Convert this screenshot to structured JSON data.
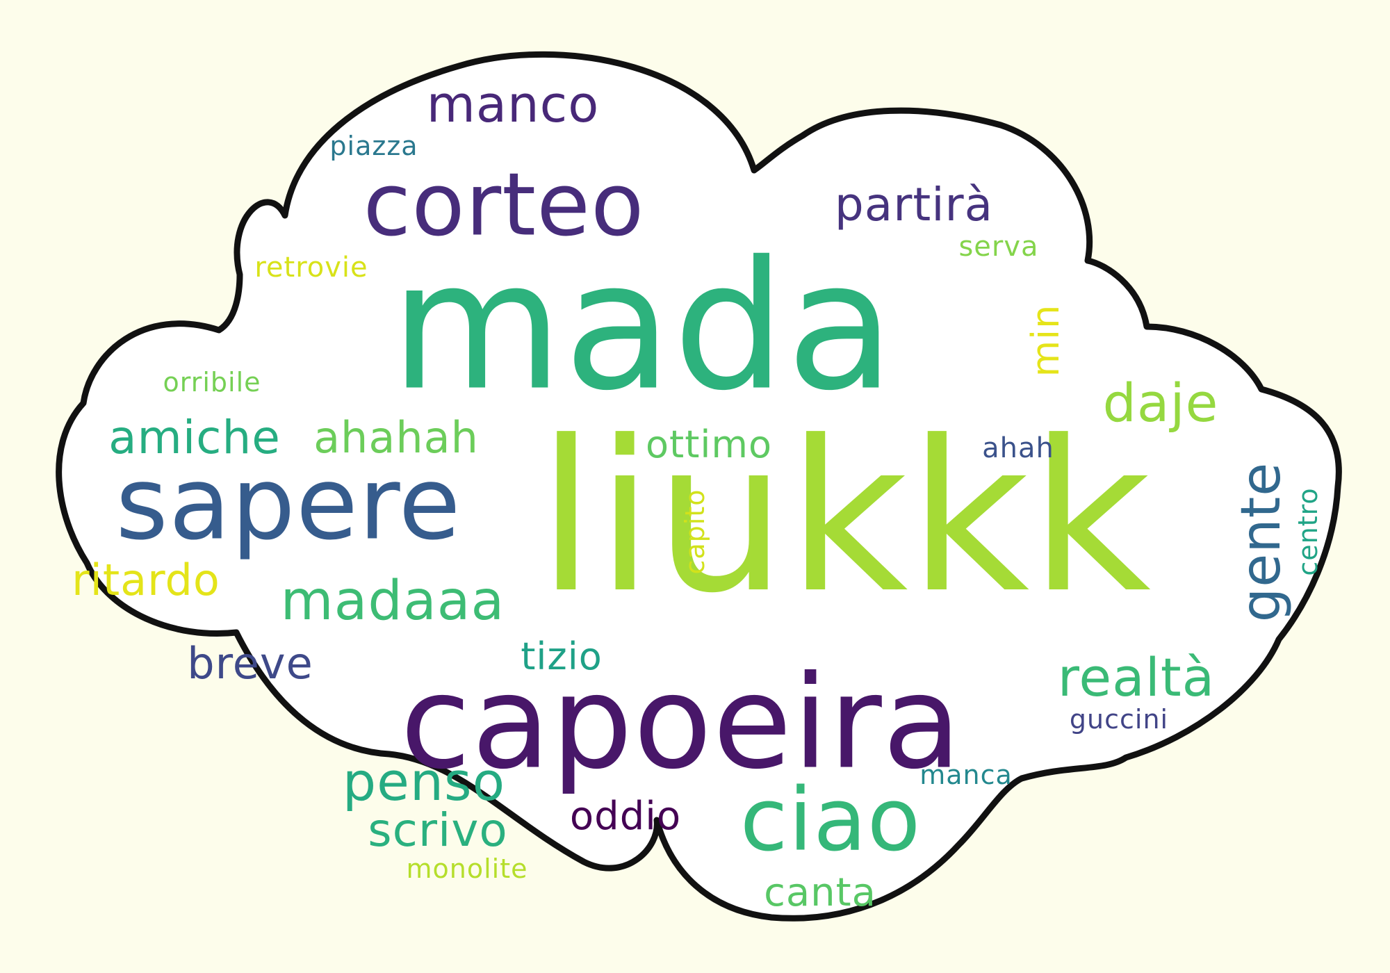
{
  "words": {
    "liukkk": {
      "text": "liukkk",
      "color": "#a5db36"
    },
    "mada": {
      "text": "mada",
      "color": "#2db27d"
    },
    "capoeira": {
      "text": "capoeira",
      "color": "#481769"
    },
    "sapere": {
      "text": "sapere",
      "color": "#365c8d"
    },
    "corteo": {
      "text": "corteo",
      "color": "#472d7b"
    },
    "ciao": {
      "text": "ciao",
      "color": "#35b779"
    },
    "madaaa": {
      "text": "madaaa",
      "color": "#3dbc74"
    },
    "amiche": {
      "text": "amiche",
      "color": "#26ad81"
    },
    "ahahah": {
      "text": "ahahah",
      "color": "#6ccd5a"
    },
    "gente": {
      "text": "gente",
      "color": "#31688e"
    },
    "realta": {
      "text": "realtà",
      "color": "#3aba76"
    },
    "daje": {
      "text": "daje",
      "color": "#95d840"
    },
    "penso": {
      "text": "penso",
      "color": "#25ab82"
    },
    "scrivo": {
      "text": "scrivo",
      "color": "#2ab07f"
    },
    "manco": {
      "text": "manco",
      "color": "#482878"
    },
    "partira": {
      "text": "partirà",
      "color": "#46337e"
    },
    "ritardo": {
      "text": "ritardo",
      "color": "#e4e419"
    },
    "breve": {
      "text": "breve",
      "color": "#3e4989"
    },
    "ottimo": {
      "text": "ottimo",
      "color": "#5ec962"
    },
    "tizio": {
      "text": "tizio",
      "color": "#1fa187"
    },
    "oddio": {
      "text": "oddio",
      "color": "#440154"
    },
    "canta": {
      "text": "canta",
      "color": "#58c765"
    },
    "min": {
      "text": "min",
      "color": "#e5e419"
    },
    "retrovie": {
      "text": "retrovie",
      "color": "#d8e219"
    },
    "serva": {
      "text": "serva",
      "color": "#84d44b"
    },
    "piazza": {
      "text": "piazza",
      "color": "#2a788e"
    },
    "orribile": {
      "text": "orribile",
      "color": "#75d054"
    },
    "ahah": {
      "text": "ahah",
      "color": "#3b528b"
    },
    "capito": {
      "text": "capito",
      "color": "#d2e21b"
    },
    "centro": {
      "text": "centro",
      "color": "#20a486"
    },
    "guccini": {
      "text": "guccini",
      "color": "#414487"
    },
    "manca": {
      "text": "manca",
      "color": "#23888e"
    },
    "monolite": {
      "text": "monolite",
      "color": "#b5de2b"
    }
  },
  "cloud": {
    "fill": "#ffffff",
    "stroke": "#111111",
    "page_background": "#fdfdeb"
  }
}
